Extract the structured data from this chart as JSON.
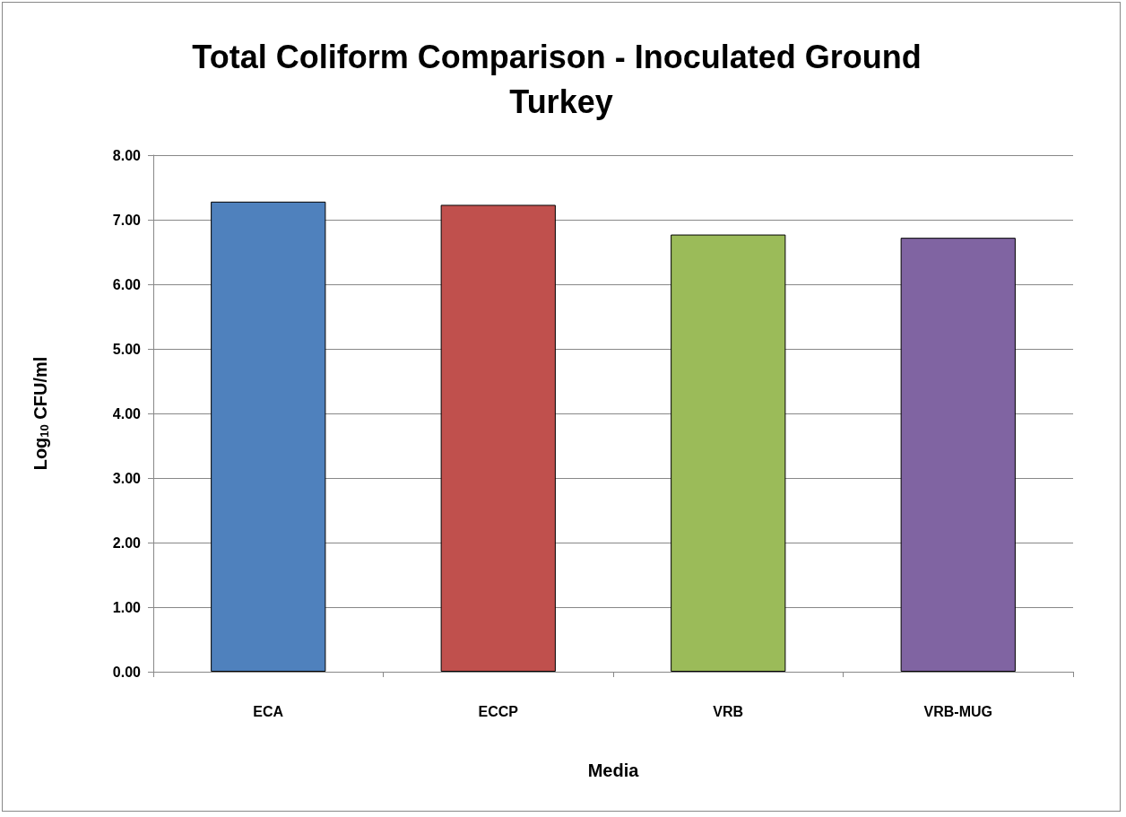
{
  "chart_data": {
    "type": "bar",
    "title": "Total Coliform Comparison - Inoculated Ground Turkey",
    "xlabel": "Media",
    "ylabel": "Log$_{10}$ CFU/ml",
    "categories": [
      "ECA",
      "ECCP",
      "VRB",
      "VRB-MUG"
    ],
    "values": [
      7.28,
      7.23,
      6.77,
      6.72
    ],
    "colors": [
      "#4f81bd",
      "#c0504d",
      "#9bbb59",
      "#8064a2"
    ],
    "ylim": [
      0,
      8
    ],
    "yticks": [
      {
        "value": 0,
        "label": "0.00"
      },
      {
        "value": 1,
        "label": "1.00"
      },
      {
        "value": 2,
        "label": "2.00"
      },
      {
        "value": 3,
        "label": "3.00"
      },
      {
        "value": 4,
        "label": "4.00"
      },
      {
        "value": 5,
        "label": "5.00"
      },
      {
        "value": 6,
        "label": "6.00"
      },
      {
        "value": 7,
        "label": "7.00"
      },
      {
        "value": 8,
        "label": "8.00"
      }
    ],
    "grid": "y"
  }
}
